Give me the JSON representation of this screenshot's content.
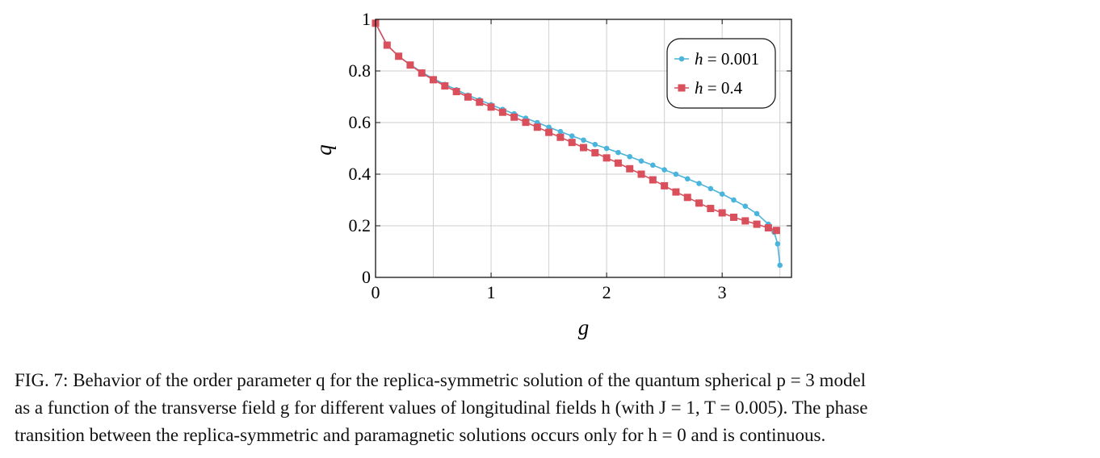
{
  "chart_data": {
    "type": "line",
    "xlabel": "g",
    "ylabel": "q",
    "xlim": [
      0,
      3.6
    ],
    "ylim": [
      0,
      1
    ],
    "xticks": [
      0,
      1,
      2,
      3
    ],
    "xtick_labels": [
      "0",
      "1",
      "2",
      "3"
    ],
    "yticks": [
      0,
      0.2,
      0.4,
      0.6,
      0.8,
      1
    ],
    "ytick_labels": [
      "0",
      "0.2",
      "0.4",
      "0.6",
      "0.8",
      "1"
    ],
    "grid": true,
    "legend_position": "top-right",
    "series": [
      {
        "name": "h = 0.001",
        "legend_var": "h",
        "legend_rest": " = 0.001",
        "color": "#4ab4dc",
        "marker": "circle",
        "x": [
          0,
          0.1,
          0.2,
          0.3,
          0.4,
          0.5,
          0.6,
          0.7,
          0.8,
          0.9,
          1.0,
          1.1,
          1.2,
          1.3,
          1.4,
          1.5,
          1.6,
          1.7,
          1.8,
          1.9,
          2.0,
          2.1,
          2.2,
          2.3,
          2.4,
          2.5,
          2.6,
          2.7,
          2.8,
          2.9,
          3.0,
          3.1,
          3.2,
          3.3,
          3.4,
          3.45,
          3.48,
          3.5
        ],
        "y": [
          0.985,
          0.9,
          0.857,
          0.825,
          0.795,
          0.77,
          0.748,
          0.727,
          0.706,
          0.688,
          0.669,
          0.651,
          0.634,
          0.617,
          0.6,
          0.582,
          0.565,
          0.548,
          0.532,
          0.515,
          0.5,
          0.484,
          0.468,
          0.451,
          0.435,
          0.417,
          0.4,
          0.382,
          0.364,
          0.344,
          0.323,
          0.3,
          0.276,
          0.247,
          0.206,
          0.175,
          0.13,
          0.047
        ]
      },
      {
        "name": "h = 0.4",
        "legend_var": "h",
        "legend_rest": " = 0.4",
        "color": "#d94f5c",
        "marker": "square",
        "x": [
          0,
          0.1,
          0.2,
          0.3,
          0.4,
          0.5,
          0.6,
          0.7,
          0.8,
          0.9,
          1.0,
          1.1,
          1.2,
          1.3,
          1.4,
          1.5,
          1.6,
          1.7,
          1.8,
          1.9,
          2.0,
          2.1,
          2.2,
          2.3,
          2.4,
          2.5,
          2.6,
          2.7,
          2.8,
          2.9,
          3.0,
          3.1,
          3.2,
          3.3,
          3.4,
          3.47
        ],
        "y": [
          0.985,
          0.9,
          0.857,
          0.823,
          0.792,
          0.766,
          0.742,
          0.72,
          0.699,
          0.679,
          0.66,
          0.64,
          0.621,
          0.601,
          0.582,
          0.562,
          0.543,
          0.523,
          0.503,
          0.483,
          0.463,
          0.443,
          0.421,
          0.4,
          0.378,
          0.355,
          0.331,
          0.31,
          0.288,
          0.267,
          0.25,
          0.233,
          0.219,
          0.206,
          0.192,
          0.182
        ]
      }
    ]
  },
  "caption": {
    "line1": "FIG. 7: Behavior of the order parameter q for the replica-symmetric solution of the quantum spherical p = 3 model",
    "line2": "as a function of the transverse field g for different values of longitudinal fields h (with J = 1, T = 0.005). The phase",
    "line3": "transition between the replica-symmetric and paramagnetic solutions occurs only for h = 0 and is continuous."
  }
}
